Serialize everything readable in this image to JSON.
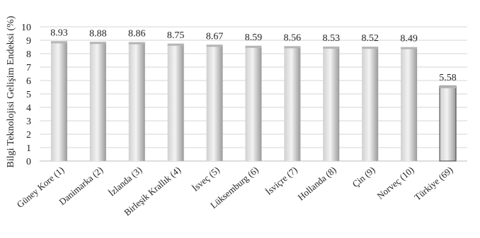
{
  "chart_data": {
    "type": "bar",
    "ylabel": "Bilgi Teknolojisi Gelişim Endeksi  (%)",
    "ylim": [
      0,
      10
    ],
    "yticks": [
      0,
      1,
      2,
      3,
      4,
      5,
      6,
      7,
      8,
      9,
      10
    ],
    "grid": true,
    "categories": [
      "Güney Kore (1)",
      "Danimarka (2)",
      "İzlanda (3)",
      "Birleşik Krallık (4)",
      "İsveç (5)",
      "Lüksemburg (6)",
      "İsviçre (7)",
      "Hollanda (8)",
      "Çin (9)",
      "Norveç (10)",
      "Türkiye (69)"
    ],
    "values": [
      8.93,
      8.88,
      8.86,
      8.75,
      8.67,
      8.59,
      8.56,
      8.53,
      8.52,
      8.49,
      5.58
    ],
    "value_labels": [
      "8.93",
      "8.88",
      "8.86",
      "8.75",
      "8.67",
      "8.59",
      "8.56",
      "8.53",
      "8.52",
      "8.49",
      "5.58"
    ],
    "colors": {
      "bar_light": "#f2f2f2",
      "bar_mid": "#c4c4c4",
      "bar_dark": "#8f8f8f",
      "highlight_edge": "#3a3a3a",
      "grid": "#d6d6d6"
    }
  }
}
